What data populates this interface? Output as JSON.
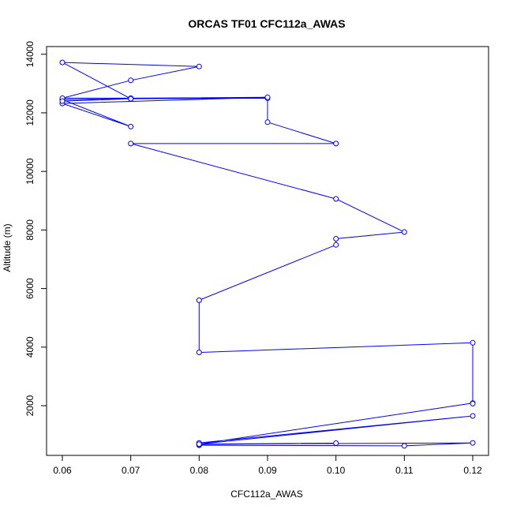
{
  "chart_data": {
    "type": "line",
    "title": "ORCAS TF01 CFC112a_AWAS",
    "xlabel": "CFC112a_AWAS",
    "ylabel": "Altitude (m)",
    "xlim": [
      0.06,
      0.12
    ],
    "ylim": [
      600,
      13750
    ],
    "xticks": [
      "0.06",
      "0.07",
      "0.08",
      "0.09",
      "0.10",
      "0.11",
      "0.12"
    ],
    "yticks": [
      "2000",
      "4000",
      "6000",
      "8000",
      "10000",
      "12000",
      "14000"
    ],
    "grid": false,
    "color": "#0000ff",
    "series": [
      {
        "marker": "open-circle",
        "x": [
          0.08,
          0.11,
          0.12,
          0.08,
          0.1,
          0.08,
          0.08,
          0.12,
          0.08,
          0.12,
          0.12,
          0.12,
          0.08,
          0.08,
          0.1,
          0.1,
          0.11,
          0.1,
          0.07,
          0.1,
          0.09,
          0.09,
          0.07,
          0.06,
          0.07,
          0.06,
          0.09,
          0.07,
          0.06,
          0.07,
          0.08,
          0.06,
          0.07,
          0.06
        ],
        "y": [
          650,
          630,
          730,
          690,
          720,
          680,
          730,
          1650,
          690,
          2090,
          2070,
          4150,
          3820,
          5600,
          7490,
          7700,
          7930,
          9060,
          10950,
          10950,
          11680,
          12500,
          12480,
          12450,
          11530,
          12320,
          12530,
          12500,
          12500,
          13110,
          13580,
          13720,
          12480,
          12400
        ]
      }
    ]
  }
}
